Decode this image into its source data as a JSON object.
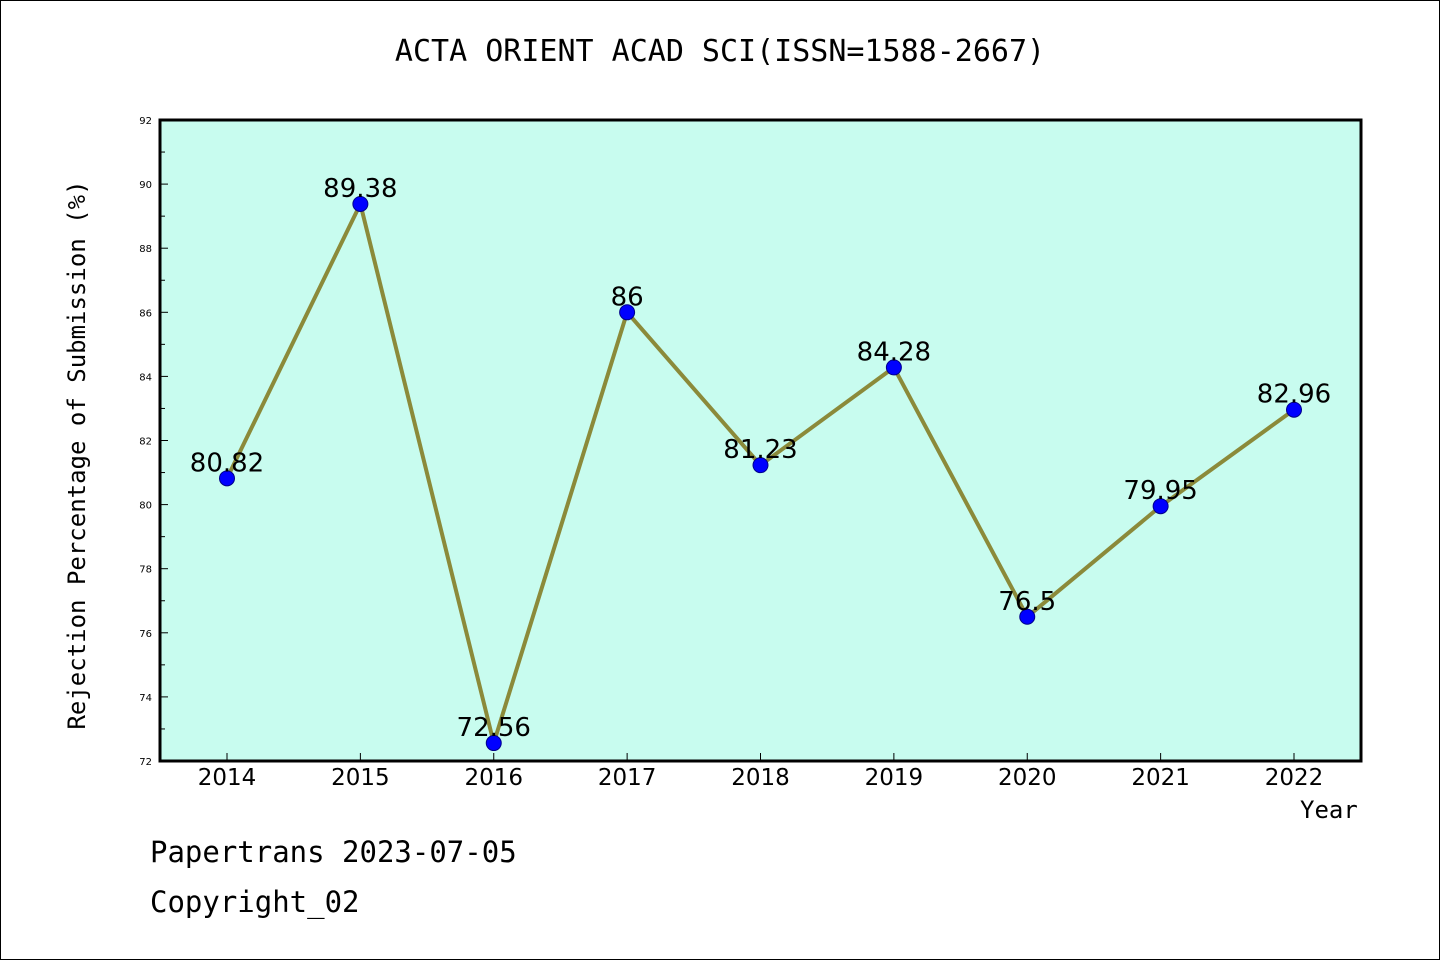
{
  "chart_data": {
    "type": "line",
    "title": "ACTA ORIENT ACAD SCI(ISSN=1588-2667)",
    "xlabel": "Year",
    "ylabel": "Rejection Percentage of Submission (%)",
    "categories": [
      "2014",
      "2015",
      "2016",
      "2017",
      "2018",
      "2019",
      "2020",
      "2021",
      "2022"
    ],
    "series": [
      {
        "values": [
          80.82,
          89.38,
          72.56,
          86,
          81.23,
          84.28,
          76.5,
          79.95,
          82.96
        ],
        "labels": [
          "80.82",
          "89.38",
          "72.56",
          "86",
          "81.23",
          "84.28",
          "76.5",
          "79.95",
          "82.96"
        ]
      }
    ],
    "ylim": [
      72,
      92
    ],
    "yticks": [
      "72",
      "74",
      "76",
      "78",
      "80",
      "82",
      "84",
      "86",
      "88",
      "90",
      "92"
    ],
    "grid": false,
    "colors": {
      "background": "#c8fcef",
      "line": "#8b8a3a",
      "marker": "#0000ff"
    }
  },
  "footer": {
    "line1": "Papertrans 2023-07-05",
    "line2": "Copyright_02"
  }
}
